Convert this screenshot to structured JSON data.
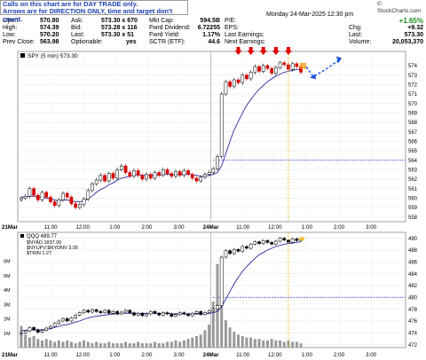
{
  "note": {
    "line1": "Calls on this chart are for DAY TRADE only.",
    "line2": "Arrows are for DIRECTION ONLY, time and target don't count."
  },
  "quote": {
    "date_time": "Monday  24-Mar-2025  12:30 pm",
    "brand": "© StockCharts.com",
    "fields": [
      {
        "label": "Open:",
        "value": "570.80"
      },
      {
        "label": "High:",
        "value": "574.39"
      },
      {
        "label": "Low:",
        "value": "570.20"
      },
      {
        "label": "Prev Close:",
        "value": "563.98"
      },
      {
        "label": "Ask:",
        "value": "573.30 x 670"
      },
      {
        "label": "Bid:",
        "value": "573.28 x 116"
      },
      {
        "label": "Last:",
        "value": "573.30 x 51"
      },
      {
        "label": "Optionable:",
        "value": "yes"
      },
      {
        "label": "Mkt Cap:",
        "value": "594.5B"
      },
      {
        "label": "Fwrd Dividend:",
        "value": "6.72255"
      },
      {
        "label": "Fwrd Yield:",
        "value": "1.17%"
      },
      {
        "label": "SCTR (ETF):",
        "value": "44.6"
      },
      {
        "label": "P/E:",
        "value": ""
      },
      {
        "label": "EPS:",
        "value": ""
      },
      {
        "label": "Last Earnings:",
        "value": ""
      },
      {
        "label": "Next Earnings:",
        "value": ""
      }
    ],
    "pct_change": "+1.65%",
    "chg_label": "Chg:",
    "chg": "+9.32",
    "last_label": "Last:",
    "last": "573.30",
    "volume_label": "Volume:",
    "volume": "20,053,370"
  },
  "colors": {
    "up": "#000000",
    "down": "#d40000",
    "ma": "#2b2b9f",
    "guide": "#2b40e0",
    "vol": "#9a9a9a",
    "pivot": "#e8b400",
    "arrow": "#e00000",
    "blue_arrow": "#1a55e0"
  },
  "chart_data": [
    {
      "type": "line",
      "title": "SPY (5 min) 573.30",
      "ylim": [
        557.5,
        575.5
      ],
      "yticks": [
        558,
        559,
        560,
        561,
        562,
        563,
        564,
        565,
        566,
        567,
        568,
        569,
        570,
        571,
        572,
        573,
        574
      ],
      "xticks": [
        "21Mar",
        "11:00",
        "12:00",
        "1:00",
        "2:00",
        "3:00",
        "24Mar",
        "11:00",
        "12:00",
        "1:00",
        "2:00",
        "3:00"
      ],
      "horizontal_level": 564.0,
      "price": [
        560.0,
        560.2,
        561.0,
        560.3,
        559.8,
        560.6,
        560.1,
        559.6,
        559.2,
        559.8,
        560.5,
        560.1,
        559.4,
        559.0,
        559.3,
        559.9,
        560.8,
        561.5,
        561.9,
        562.4,
        561.8,
        562.6,
        562.1,
        563.0,
        563.4,
        562.7,
        562.3,
        562.9,
        562.4,
        562.0,
        562.5,
        562.1,
        562.7,
        562.4,
        563.0,
        562.6,
        562.3,
        562.8,
        562.4,
        562.9,
        562.5,
        562.1,
        561.8,
        562.2,
        562.5,
        562.7,
        563.1,
        564.4,
        571.0,
        572.3,
        571.8,
        572.5,
        572.2,
        573.0,
        572.6,
        573.3,
        573.9,
        573.4,
        574.0,
        573.7,
        573.2,
        573.8,
        574.3,
        574.1,
        573.6,
        574.2,
        573.9,
        573.3
      ],
      "ma_fast": [
        560.1,
        560.1,
        560.2,
        560.2,
        560.1,
        560.1,
        560.0,
        559.9,
        559.8,
        559.7,
        559.8,
        559.8,
        559.7,
        559.6,
        559.6,
        559.7,
        559.9,
        560.2,
        560.6,
        560.9,
        561.1,
        561.4,
        561.6,
        561.9,
        562.1,
        562.2,
        562.3,
        562.4,
        562.5,
        562.4,
        562.4,
        562.4,
        562.4,
        562.4,
        562.5,
        562.5,
        562.5,
        562.5,
        562.5,
        562.5,
        562.5,
        562.5,
        562.4,
        562.3,
        562.3,
        562.4,
        562.5,
        562.7,
        563.4,
        564.7,
        566.0,
        567.2,
        568.1,
        569.0,
        569.8,
        570.4,
        571.0,
        571.5,
        571.9,
        572.3,
        572.6,
        572.9,
        573.1,
        573.3,
        573.4,
        573.5,
        573.6,
        573.6
      ],
      "arrows_down": [
        52,
        55,
        58,
        61,
        64
      ],
      "pivot_index": 64
    },
    {
      "type": "line",
      "title": "QQQ 489.77",
      "legend": [
        "$NYAD 1837.00",
        "$NYUPV:$NYDNV 3.05",
        "$TRIN 1.27"
      ],
      "ylim": [
        471.5,
        491
      ],
      "yticks": [
        472,
        474,
        476,
        478,
        480,
        482,
        484,
        486,
        488,
        490
      ],
      "volume_ticks": [
        "1M",
        "2M",
        "3M",
        "4M",
        "5M",
        "6M"
      ],
      "horizontal_level": 480.0,
      "price": [
        474.0,
        474.3,
        474.9,
        474.5,
        474.1,
        474.4,
        474.8,
        475.1,
        475.6,
        476.0,
        476.4,
        476.0,
        476.5,
        477.0,
        477.4,
        477.8,
        477.5,
        477.9,
        477.6,
        477.4,
        477.8,
        477.3,
        477.6,
        477.2,
        477.5,
        477.8,
        477.4,
        477.0,
        477.3,
        476.9,
        477.2,
        477.6,
        477.3,
        477.0,
        477.4,
        477.2,
        476.8,
        477.1,
        477.4,
        477.2,
        476.9,
        477.3,
        477.6,
        477.1,
        477.4,
        477.7,
        478.0,
        478.6,
        486.8,
        487.9,
        487.4,
        488.1,
        487.8,
        488.6,
        488.3,
        489.0,
        489.4,
        489.1,
        489.6,
        489.3,
        489.0,
        489.5,
        490.0,
        489.7,
        489.3,
        489.9,
        489.6,
        489.77
      ],
      "ma_fast": [
        474.4,
        474.4,
        474.5,
        474.5,
        474.5,
        474.5,
        474.6,
        474.7,
        474.9,
        475.1,
        475.3,
        475.4,
        475.6,
        475.8,
        476.0,
        476.3,
        476.5,
        476.7,
        476.8,
        476.9,
        477.0,
        477.1,
        477.2,
        477.2,
        477.3,
        477.3,
        477.3,
        477.3,
        477.3,
        477.3,
        477.3,
        477.3,
        477.3,
        477.3,
        477.3,
        477.3,
        477.2,
        477.2,
        477.2,
        477.2,
        477.2,
        477.2,
        477.2,
        477.2,
        477.2,
        477.3,
        477.4,
        477.6,
        478.4,
        479.7,
        481.0,
        482.3,
        483.4,
        484.4,
        485.2,
        485.9,
        486.6,
        487.2,
        487.6,
        488.0,
        488.3,
        488.6,
        488.8,
        489.0,
        489.1,
        489.2,
        489.3,
        489.4
      ],
      "volume_m": [
        1.5,
        0.9,
        0.7,
        0.8,
        0.6,
        0.5,
        0.6,
        0.5,
        0.4,
        0.5,
        0.4,
        0.5,
        0.4,
        0.3,
        0.4,
        0.5,
        0.4,
        0.3,
        0.4,
        0.3,
        0.3,
        0.4,
        0.3,
        0.3,
        0.3,
        0.4,
        0.3,
        0.3,
        0.4,
        0.3,
        0.3,
        0.3,
        0.4,
        0.3,
        0.3,
        0.4,
        0.4,
        0.5,
        0.4,
        0.5,
        0.6,
        0.7,
        0.8,
        0.9,
        1.2,
        1.6,
        3.2,
        5.8,
        3.0,
        1.9,
        1.4,
        1.1,
        0.9,
        0.8,
        0.7,
        0.7,
        0.6,
        0.6,
        0.5,
        0.5,
        0.6,
        0.5,
        0.5,
        0.4,
        0.5,
        0.4,
        0.4,
        0.3
      ]
    }
  ]
}
